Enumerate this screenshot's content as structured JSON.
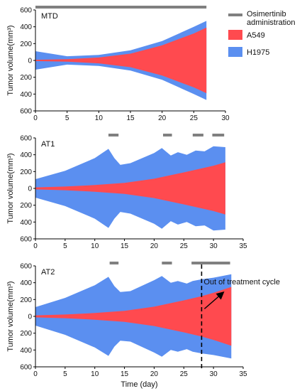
{
  "chart_data": [
    {
      "type": "area",
      "panel_label": "MTD",
      "ylabel": "Tumor volume(mm³)",
      "xlabel": "",
      "xlim": [
        0,
        30
      ],
      "xticks": [
        "0",
        "5",
        "10",
        "15",
        "20",
        "25",
        "30"
      ],
      "ylim": [
        -600,
        600
      ],
      "yticks": [
        "600",
        "400",
        "200",
        "0",
        "200",
        "400",
        "600"
      ],
      "administration": [
        [
          0,
          27
        ]
      ],
      "series": [
        {
          "name": "H1975",
          "color": "#5b8ff0",
          "x": [
            0,
            5,
            10,
            15,
            20,
            25,
            27
          ],
          "upper": [
            110,
            50,
            65,
            120,
            230,
            400,
            470
          ],
          "lower": [
            -110,
            -50,
            -65,
            -120,
            -230,
            -400,
            -470
          ]
        },
        {
          "name": "A549",
          "color": "#ff4a4f",
          "x": [
            0,
            5,
            10,
            15,
            20,
            25,
            27
          ],
          "upper": [
            8,
            15,
            35,
            80,
            180,
            320,
            390
          ],
          "lower": [
            -8,
            -15,
            -35,
            -80,
            -180,
            -320,
            -390
          ]
        }
      ]
    },
    {
      "type": "area",
      "panel_label": "AT1",
      "ylabel": "Tumor volume(mm³)",
      "xlabel": "",
      "xlim": [
        0,
        35
      ],
      "xticks": [
        "0",
        "5",
        "10",
        "15",
        "20",
        "25",
        "30",
        "35"
      ],
      "ylim": [
        -600,
        600
      ],
      "yticks": [
        "600",
        "400",
        "200",
        "0",
        "200",
        "400",
        "600"
      ],
      "administration": [
        [
          12.3,
          14
        ],
        [
          21.5,
          23
        ],
        [
          26.5,
          28.3
        ],
        [
          29.8,
          31.8
        ]
      ],
      "series": [
        {
          "name": "H1975",
          "color": "#5b8ff0",
          "x": [
            0,
            5,
            10,
            12.3,
            13.3,
            14.3,
            16,
            20,
            21.3,
            22.8,
            24,
            25.5,
            27,
            28.5,
            30,
            32
          ],
          "upper": [
            110,
            210,
            360,
            470,
            360,
            280,
            300,
            420,
            480,
            390,
            430,
            400,
            450,
            440,
            500,
            490
          ],
          "lower": [
            -110,
            -210,
            -360,
            -470,
            -360,
            -280,
            -300,
            -420,
            -480,
            -390,
            -430,
            -400,
            -450,
            -440,
            -500,
            -490
          ]
        },
        {
          "name": "A549",
          "color": "#ff4a4f",
          "x": [
            0,
            5,
            10,
            15,
            20,
            25,
            30,
            32
          ],
          "upper": [
            12,
            22,
            40,
            65,
            115,
            190,
            270,
            310
          ],
          "lower": [
            -12,
            -22,
            -40,
            -65,
            -115,
            -190,
            -270,
            -310
          ]
        }
      ]
    },
    {
      "type": "area",
      "panel_label": "AT2",
      "ylabel": "Tumor volume(mm³)",
      "xlabel": "Time (day)",
      "xlim": [
        0,
        35
      ],
      "xticks": [
        "0",
        "5",
        "10",
        "15",
        "20",
        "25",
        "30",
        "35"
      ],
      "ylim": [
        -600,
        600
      ],
      "yticks": [
        "600",
        "400",
        "200",
        "0",
        "200",
        "400",
        "600"
      ],
      "administration": [
        [
          12.5,
          14
        ],
        [
          21.3,
          23
        ],
        [
          26.3,
          32.8
        ]
      ],
      "treatment_cycle_end": 28,
      "annotation": "Out of treatment cycle",
      "series": [
        {
          "name": "H1975",
          "color": "#5b8ff0",
          "x": [
            0,
            5,
            10,
            12.3,
            13.3,
            14.3,
            16,
            20,
            21.3,
            22.8,
            24,
            25.5,
            26.5,
            28,
            30,
            33
          ],
          "upper": [
            110,
            220,
            370,
            470,
            360,
            290,
            300,
            430,
            480,
            400,
            420,
            390,
            420,
            440,
            460,
            500
          ],
          "lower": [
            -110,
            -220,
            -370,
            -470,
            -360,
            -290,
            -300,
            -430,
            -480,
            -400,
            -420,
            -390,
            -420,
            -440,
            -460,
            -500
          ]
        },
        {
          "name": "A549",
          "color": "#ff4a4f",
          "x": [
            0,
            5,
            10,
            15,
            20,
            25,
            28,
            30,
            33
          ],
          "upper": [
            12,
            22,
            40,
            65,
            115,
            190,
            240,
            280,
            350
          ],
          "lower": [
            -12,
            -22,
            -40,
            -65,
            -115,
            -190,
            -240,
            -280,
            -350
          ]
        }
      ]
    }
  ],
  "legend": {
    "placement": "right of top panel",
    "items": [
      {
        "label": "Osimertinib administration",
        "color": "#808080",
        "swatch": "line"
      },
      {
        "label": "A549",
        "color": "#ff4a4f",
        "swatch": "box"
      },
      {
        "label": "H1975",
        "color": "#5b8ff0",
        "swatch": "box"
      }
    ]
  }
}
